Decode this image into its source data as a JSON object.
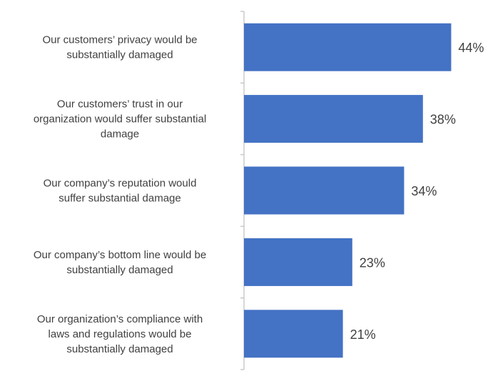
{
  "chart_data": {
    "type": "bar",
    "orientation": "horizontal",
    "categories": [
      "Our customers’ privacy would be substantially damaged",
      "Our customers’ trust in our organization would suffer substantial damage",
      "Our company’s reputation would suffer substantial damage",
      "Our company’s bottom line would be substantially damaged",
      "Our organization’s compliance with laws and regulations would be substantially damaged"
    ],
    "category_lines": [
      [
        "Our customers’ privacy would be",
        "substantially damaged"
      ],
      [
        "Our customers’ trust in our",
        "organization would suffer substantial",
        "damage"
      ],
      [
        "Our company’s reputation would",
        "suffer substantial damage"
      ],
      [
        "Our company’s bottom line would be",
        "substantially damaged"
      ],
      [
        "Our organization’s compliance with",
        "laws and regulations would be",
        "substantially damaged"
      ]
    ],
    "values": [
      44,
      38,
      34,
      23,
      21
    ],
    "value_labels": [
      "44%",
      "38%",
      "34%",
      "23%",
      "21%"
    ],
    "title": "",
    "xlabel": "",
    "ylabel": "",
    "xlim": [
      0,
      50
    ],
    "grid": false,
    "legend": "none",
    "bar_color": "#4472C4",
    "axis_color": "#BFBFBF",
    "text_color": "#404040"
  }
}
